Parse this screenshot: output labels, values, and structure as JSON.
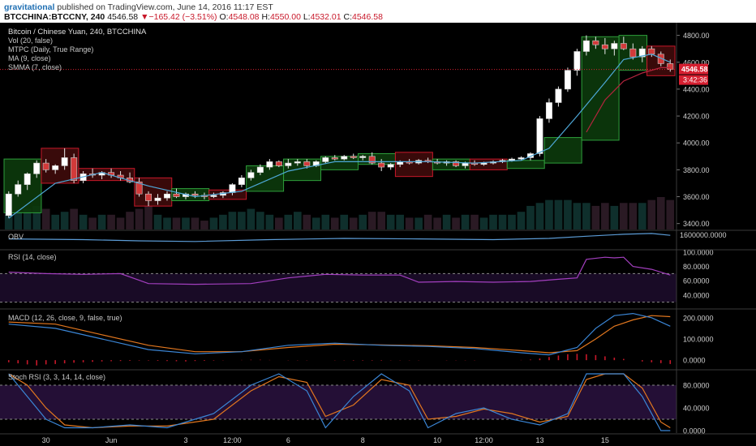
{
  "header": {
    "author": "gravitational",
    "published_text": "published on TradingView.com, June 14, 2016 11:17 EST",
    "symbol": "BTCCHINA:BTCCNY, 240",
    "last": "4546.58",
    "change_arrow": "▼",
    "change": "−165.42 (−3.51%)",
    "o_label": "O:",
    "o_value": "4548.08",
    "h_label": "H:",
    "h_value": "4550.00",
    "l_label": "L:",
    "l_value": "4532.01",
    "c_label": "C:",
    "c_value": "4546.58"
  },
  "colors": {
    "up": "#2e9e3b",
    "down": "#c8182a",
    "up_box_fill": "#0c3a0c",
    "down_box_fill": "#3f0b0b",
    "ma": "#4ea8d8",
    "smma": "#b5253e",
    "obv": "#5b9bd5",
    "rsi": "#a33fbf",
    "macd": "#3b86d6",
    "signal": "#e2771f",
    "hist": "#c8182a",
    "stoch_k": "#3b86d6",
    "stoch_d": "#e2771f",
    "band_fill": "#2a1240",
    "price_tag": "#d61f30"
  },
  "main_pane": {
    "title": "Bitcoin / Chinese Yuan, 240, BTCCHINA",
    "indicators": [
      "Vol (20, false)",
      "MTPC (Daily, True Range)",
      "MA (9, close)",
      "SMMA (7, close)"
    ],
    "price_label": "4546.58",
    "countdown_label": "3:42:36"
  },
  "panes": {
    "obv": {
      "title": "OBV",
      "ticks": [
        "1600000.0000"
      ]
    },
    "rsi": {
      "title": "RSI (14, close)",
      "ticks": [
        "100.0000",
        "80.0000",
        "60.0000",
        "40.0000"
      ]
    },
    "macd": {
      "title": "MACD (12, 26, close, 9, false, true)",
      "ticks": [
        "200.0000",
        "100.0000",
        "0.0000"
      ]
    },
    "stoch": {
      "title": "Stoch RSI (3, 3, 14, 14, close)",
      "ticks": [
        "80.0000",
        "40.0000",
        "0.0000"
      ]
    }
  },
  "chart_data": {
    "type": "candlestick",
    "title": "Bitcoin / Chinese Yuan, 240, BTCCHINA",
    "y_axis": {
      "ticks": [
        3400,
        3600,
        3800,
        4000,
        4200,
        4400,
        4600,
        4800
      ],
      "range": [
        3380,
        4870
      ]
    },
    "x_axis": {
      "tick_labels": [
        "30",
        "Jun",
        "3",
        "12:00",
        "6",
        "8",
        "10",
        "12:00",
        "13",
        "15"
      ]
    },
    "candles_ohlc": [
      [
        3460,
        3640,
        3440,
        3620
      ],
      [
        3620,
        3720,
        3600,
        3690
      ],
      [
        3690,
        3780,
        3650,
        3770
      ],
      [
        3770,
        3870,
        3740,
        3850
      ],
      [
        3850,
        3880,
        3780,
        3800
      ],
      [
        3800,
        3840,
        3770,
        3830
      ],
      [
        3830,
        3960,
        3800,
        3890
      ],
      [
        3890,
        3920,
        3700,
        3720
      ],
      [
        3720,
        3790,
        3700,
        3770
      ],
      [
        3770,
        3810,
        3740,
        3760
      ],
      [
        3760,
        3790,
        3730,
        3780
      ],
      [
        3780,
        3810,
        3740,
        3760
      ],
      [
        3760,
        3790,
        3720,
        3740
      ],
      [
        3740,
        3780,
        3700,
        3710
      ],
      [
        3710,
        3740,
        3600,
        3620
      ],
      [
        3620,
        3640,
        3530,
        3570
      ],
      [
        3570,
        3620,
        3540,
        3590
      ],
      [
        3590,
        3640,
        3570,
        3620
      ],
      [
        3620,
        3660,
        3590,
        3600
      ],
      [
        3600,
        3630,
        3580,
        3620
      ],
      [
        3620,
        3640,
        3590,
        3610
      ],
      [
        3610,
        3630,
        3580,
        3600
      ],
      [
        3600,
        3630,
        3590,
        3610
      ],
      [
        3610,
        3640,
        3590,
        3630
      ],
      [
        3630,
        3700,
        3610,
        3690
      ],
      [
        3690,
        3760,
        3670,
        3740
      ],
      [
        3740,
        3800,
        3720,
        3780
      ],
      [
        3780,
        3840,
        3760,
        3820
      ],
      [
        3820,
        3880,
        3800,
        3860
      ],
      [
        3860,
        3870,
        3820,
        3830
      ],
      [
        3830,
        3880,
        3810,
        3850
      ],
      [
        3850,
        3880,
        3830,
        3860
      ],
      [
        3860,
        3880,
        3810,
        3830
      ],
      [
        3830,
        3870,
        3820,
        3860
      ],
      [
        3860,
        3900,
        3850,
        3890
      ],
      [
        3890,
        3910,
        3870,
        3880
      ],
      [
        3880,
        3910,
        3870,
        3900
      ],
      [
        3900,
        3920,
        3880,
        3890
      ],
      [
        3890,
        3910,
        3870,
        3900
      ],
      [
        3900,
        3930,
        3840,
        3850
      ],
      [
        3850,
        3880,
        3790,
        3820
      ],
      [
        3820,
        3850,
        3800,
        3840
      ],
      [
        3840,
        3870,
        3820,
        3860
      ],
      [
        3860,
        3880,
        3840,
        3850
      ],
      [
        3850,
        3880,
        3840,
        3870
      ],
      [
        3870,
        3890,
        3850,
        3860
      ],
      [
        3860,
        3880,
        3840,
        3850
      ],
      [
        3850,
        3870,
        3830,
        3860
      ],
      [
        3860,
        3870,
        3820,
        3830
      ],
      [
        3830,
        3860,
        3810,
        3850
      ],
      [
        3850,
        3870,
        3830,
        3840
      ],
      [
        3840,
        3860,
        3830,
        3850
      ],
      [
        3850,
        3870,
        3840,
        3860
      ],
      [
        3860,
        3880,
        3850,
        3870
      ],
      [
        3870,
        3890,
        3860,
        3880
      ],
      [
        3880,
        3900,
        3870,
        3890
      ],
      [
        3890,
        3930,
        3870,
        3920
      ],
      [
        3920,
        4200,
        3900,
        4180
      ],
      [
        4180,
        4330,
        4150,
        4300
      ],
      [
        4300,
        4420,
        4270,
        4400
      ],
      [
        4400,
        4560,
        4380,
        4540
      ],
      [
        4540,
        4700,
        4500,
        4680
      ],
      [
        4680,
        4800,
        4650,
        4760
      ],
      [
        4760,
        4790,
        4700,
        4730
      ],
      [
        4730,
        4780,
        4660,
        4700
      ],
      [
        4700,
        4760,
        4650,
        4740
      ],
      [
        4740,
        4790,
        4690,
        4700
      ],
      [
        4700,
        4740,
        4620,
        4640
      ],
      [
        4640,
        4720,
        4600,
        4700
      ],
      [
        4700,
        4720,
        4640,
        4660
      ],
      [
        4660,
        4680,
        4570,
        4590
      ],
      [
        4590,
        4620,
        4530,
        4546.58
      ]
    ],
    "mtpc_boxes": [
      {
        "from": 0,
        "to": 3,
        "low": 3480,
        "high": 3880,
        "dir": "up"
      },
      {
        "from": 4,
        "to": 7,
        "low": 3700,
        "high": 3960,
        "dir": "down"
      },
      {
        "from": 8,
        "to": 13,
        "low": 3720,
        "high": 3810,
        "dir": "down"
      },
      {
        "from": 14,
        "to": 17,
        "low": 3530,
        "high": 3740,
        "dir": "down"
      },
      {
        "from": 18,
        "to": 21,
        "low": 3570,
        "high": 3660,
        "dir": "up"
      },
      {
        "from": 22,
        "to": 25,
        "low": 3580,
        "high": 3650,
        "dir": "down"
      },
      {
        "from": 26,
        "to": 29,
        "low": 3640,
        "high": 3830,
        "dir": "up"
      },
      {
        "from": 30,
        "to": 33,
        "low": 3720,
        "high": 3880,
        "dir": "up"
      },
      {
        "from": 34,
        "to": 37,
        "low": 3800,
        "high": 3900,
        "dir": "up"
      },
      {
        "from": 38,
        "to": 41,
        "low": 3840,
        "high": 3920,
        "dir": "up"
      },
      {
        "from": 42,
        "to": 45,
        "low": 3750,
        "high": 3930,
        "dir": "down"
      },
      {
        "from": 46,
        "to": 49,
        "low": 3800,
        "high": 3880,
        "dir": "up"
      },
      {
        "from": 50,
        "to": 53,
        "low": 3800,
        "high": 3880,
        "dir": "down"
      },
      {
        "from": 54,
        "to": 57,
        "low": 3810,
        "high": 3870,
        "dir": "up"
      },
      {
        "from": 58,
        "to": 61,
        "low": 3850,
        "high": 4040,
        "dir": "up"
      },
      {
        "from": 62,
        "to": 65,
        "low": 4020,
        "high": 4790,
        "dir": "up"
      },
      {
        "from": 66,
        "to": 68,
        "low": 4540,
        "high": 4800,
        "dir": "up"
      },
      {
        "from": 69,
        "to": 71,
        "low": 4500,
        "high": 4720,
        "dir": "down"
      }
    ],
    "volume": [
      5,
      6,
      7,
      8,
      7,
      5,
      6,
      7,
      5,
      4,
      5,
      5,
      4,
      6,
      7,
      8,
      5,
      4,
      4,
      4,
      4,
      3,
      4,
      5,
      6,
      6,
      7,
      6,
      5,
      4,
      5,
      6,
      5,
      4,
      5,
      4,
      5,
      4,
      5,
      6,
      6,
      5,
      5,
      4,
      4,
      5,
      4,
      5,
      4,
      5,
      5,
      4,
      5,
      5,
      5,
      6,
      8,
      9,
      10,
      10,
      10,
      9,
      9,
      8,
      9,
      8,
      9,
      9,
      9,
      10,
      11,
      10
    ],
    "ma_points": [
      [
        0,
        3440
      ],
      [
        5,
        3700
      ],
      [
        10,
        3780
      ],
      [
        15,
        3680
      ],
      [
        20,
        3600
      ],
      [
        25,
        3640
      ],
      [
        30,
        3790
      ],
      [
        35,
        3860
      ],
      [
        40,
        3860
      ],
      [
        45,
        3860
      ],
      [
        50,
        3850
      ],
      [
        55,
        3870
      ],
      [
        58,
        3960
      ],
      [
        61,
        4200
      ],
      [
        64,
        4450
      ],
      [
        66,
        4620
      ],
      [
        69,
        4660
      ],
      [
        71,
        4600
      ]
    ],
    "smma_points": [
      [
        62,
        4080
      ],
      [
        64,
        4320
      ],
      [
        66,
        4460
      ],
      [
        68,
        4520
      ],
      [
        70,
        4560
      ],
      [
        71,
        4560
      ]
    ],
    "obv_points": [
      [
        0,
        0.55
      ],
      [
        8,
        0.5
      ],
      [
        14,
        0.42
      ],
      [
        20,
        0.38
      ],
      [
        28,
        0.5
      ],
      [
        36,
        0.58
      ],
      [
        44,
        0.55
      ],
      [
        52,
        0.5
      ],
      [
        58,
        0.58
      ],
      [
        62,
        0.72
      ],
      [
        66,
        0.85
      ],
      [
        69,
        0.9
      ],
      [
        71,
        0.78
      ]
    ],
    "rsi_points": [
      [
        0,
        72
      ],
      [
        4,
        70
      ],
      [
        8,
        69
      ],
      [
        12,
        70
      ],
      [
        15,
        56
      ],
      [
        20,
        55
      ],
      [
        26,
        56
      ],
      [
        30,
        64
      ],
      [
        34,
        69
      ],
      [
        38,
        68
      ],
      [
        42,
        68
      ],
      [
        44,
        58
      ],
      [
        48,
        59
      ],
      [
        52,
        58
      ],
      [
        56,
        59
      ],
      [
        59,
        62
      ],
      [
        61,
        64
      ],
      [
        62,
        90
      ],
      [
        64,
        93
      ],
      [
        65,
        92
      ],
      [
        66,
        93
      ],
      [
        67,
        80
      ],
      [
        69,
        76
      ],
      [
        71,
        68
      ]
    ],
    "rsi_levels": {
      "range": [
        25,
        100
      ],
      "upper": 70,
      "lower": 30
    },
    "macd": {
      "range": [
        -30,
        230
      ],
      "macd_points": [
        [
          0,
          170
        ],
        [
          5,
          150
        ],
        [
          10,
          100
        ],
        [
          15,
          50
        ],
        [
          20,
          30
        ],
        [
          25,
          40
        ],
        [
          30,
          70
        ],
        [
          35,
          80
        ],
        [
          40,
          70
        ],
        [
          45,
          65
        ],
        [
          50,
          55
        ],
        [
          55,
          35
        ],
        [
          58,
          25
        ],
        [
          61,
          60
        ],
        [
          63,
          150
        ],
        [
          65,
          210
        ],
        [
          67,
          220
        ],
        [
          69,
          200
        ],
        [
          71,
          160
        ]
      ],
      "signal_points": [
        [
          0,
          180
        ],
        [
          5,
          170
        ],
        [
          10,
          120
        ],
        [
          15,
          70
        ],
        [
          20,
          40
        ],
        [
          25,
          40
        ],
        [
          30,
          60
        ],
        [
          35,
          75
        ],
        [
          40,
          72
        ],
        [
          45,
          68
        ],
        [
          50,
          60
        ],
        [
          55,
          45
        ],
        [
          58,
          35
        ],
        [
          61,
          45
        ],
        [
          63,
          100
        ],
        [
          65,
          160
        ],
        [
          67,
          190
        ],
        [
          69,
          210
        ],
        [
          71,
          205
        ]
      ],
      "hist": [
        -10,
        -15,
        -20,
        -25,
        -20,
        -18,
        -15,
        -12,
        -10,
        -8,
        -6,
        -5,
        -4,
        -3,
        -2,
        -2,
        -3,
        -4,
        -5,
        -6,
        -4,
        -3,
        -2,
        -1,
        0,
        1,
        2,
        2,
        1,
        0,
        -1,
        -1,
        -1,
        0,
        0,
        -1,
        -1,
        -2,
        -2,
        -2,
        -2,
        -1,
        -1,
        -1,
        -1,
        0,
        0,
        -1,
        -1,
        -1,
        -1,
        0,
        0,
        0,
        0,
        1,
        3,
        8,
        15,
        22,
        28,
        30,
        28,
        24,
        18,
        12,
        6,
        0,
        -6,
        -10,
        -14,
        -18
      ]
    },
    "stoch": {
      "range": [
        0,
        100
      ],
      "band": [
        20,
        80
      ],
      "k_points": [
        [
          0,
          100
        ],
        [
          2,
          60
        ],
        [
          4,
          20
        ],
        [
          6,
          5
        ],
        [
          9,
          5
        ],
        [
          13,
          10
        ],
        [
          17,
          5
        ],
        [
          22,
          30
        ],
        [
          26,
          80
        ],
        [
          29,
          100
        ],
        [
          32,
          70
        ],
        [
          34,
          5
        ],
        [
          37,
          60
        ],
        [
          40,
          100
        ],
        [
          43,
          70
        ],
        [
          45,
          5
        ],
        [
          48,
          30
        ],
        [
          51,
          40
        ],
        [
          54,
          20
        ],
        [
          57,
          10
        ],
        [
          60,
          30
        ],
        [
          62,
          100
        ],
        [
          64,
          100
        ],
        [
          66,
          100
        ],
        [
          68,
          60
        ],
        [
          70,
          0
        ],
        [
          71,
          0
        ]
      ],
      "d_points": [
        [
          0,
          100
        ],
        [
          2,
          80
        ],
        [
          4,
          40
        ],
        [
          6,
          10
        ],
        [
          9,
          5
        ],
        [
          13,
          8
        ],
        [
          17,
          8
        ],
        [
          22,
          20
        ],
        [
          26,
          70
        ],
        [
          29,
          95
        ],
        [
          32,
          85
        ],
        [
          34,
          25
        ],
        [
          37,
          45
        ],
        [
          40,
          90
        ],
        [
          43,
          80
        ],
        [
          45,
          20
        ],
        [
          48,
          25
        ],
        [
          51,
          38
        ],
        [
          54,
          30
        ],
        [
          57,
          15
        ],
        [
          60,
          25
        ],
        [
          62,
          90
        ],
        [
          64,
          100
        ],
        [
          66,
          100
        ],
        [
          68,
          75
        ],
        [
          70,
          15
        ],
        [
          71,
          5
        ]
      ]
    }
  }
}
